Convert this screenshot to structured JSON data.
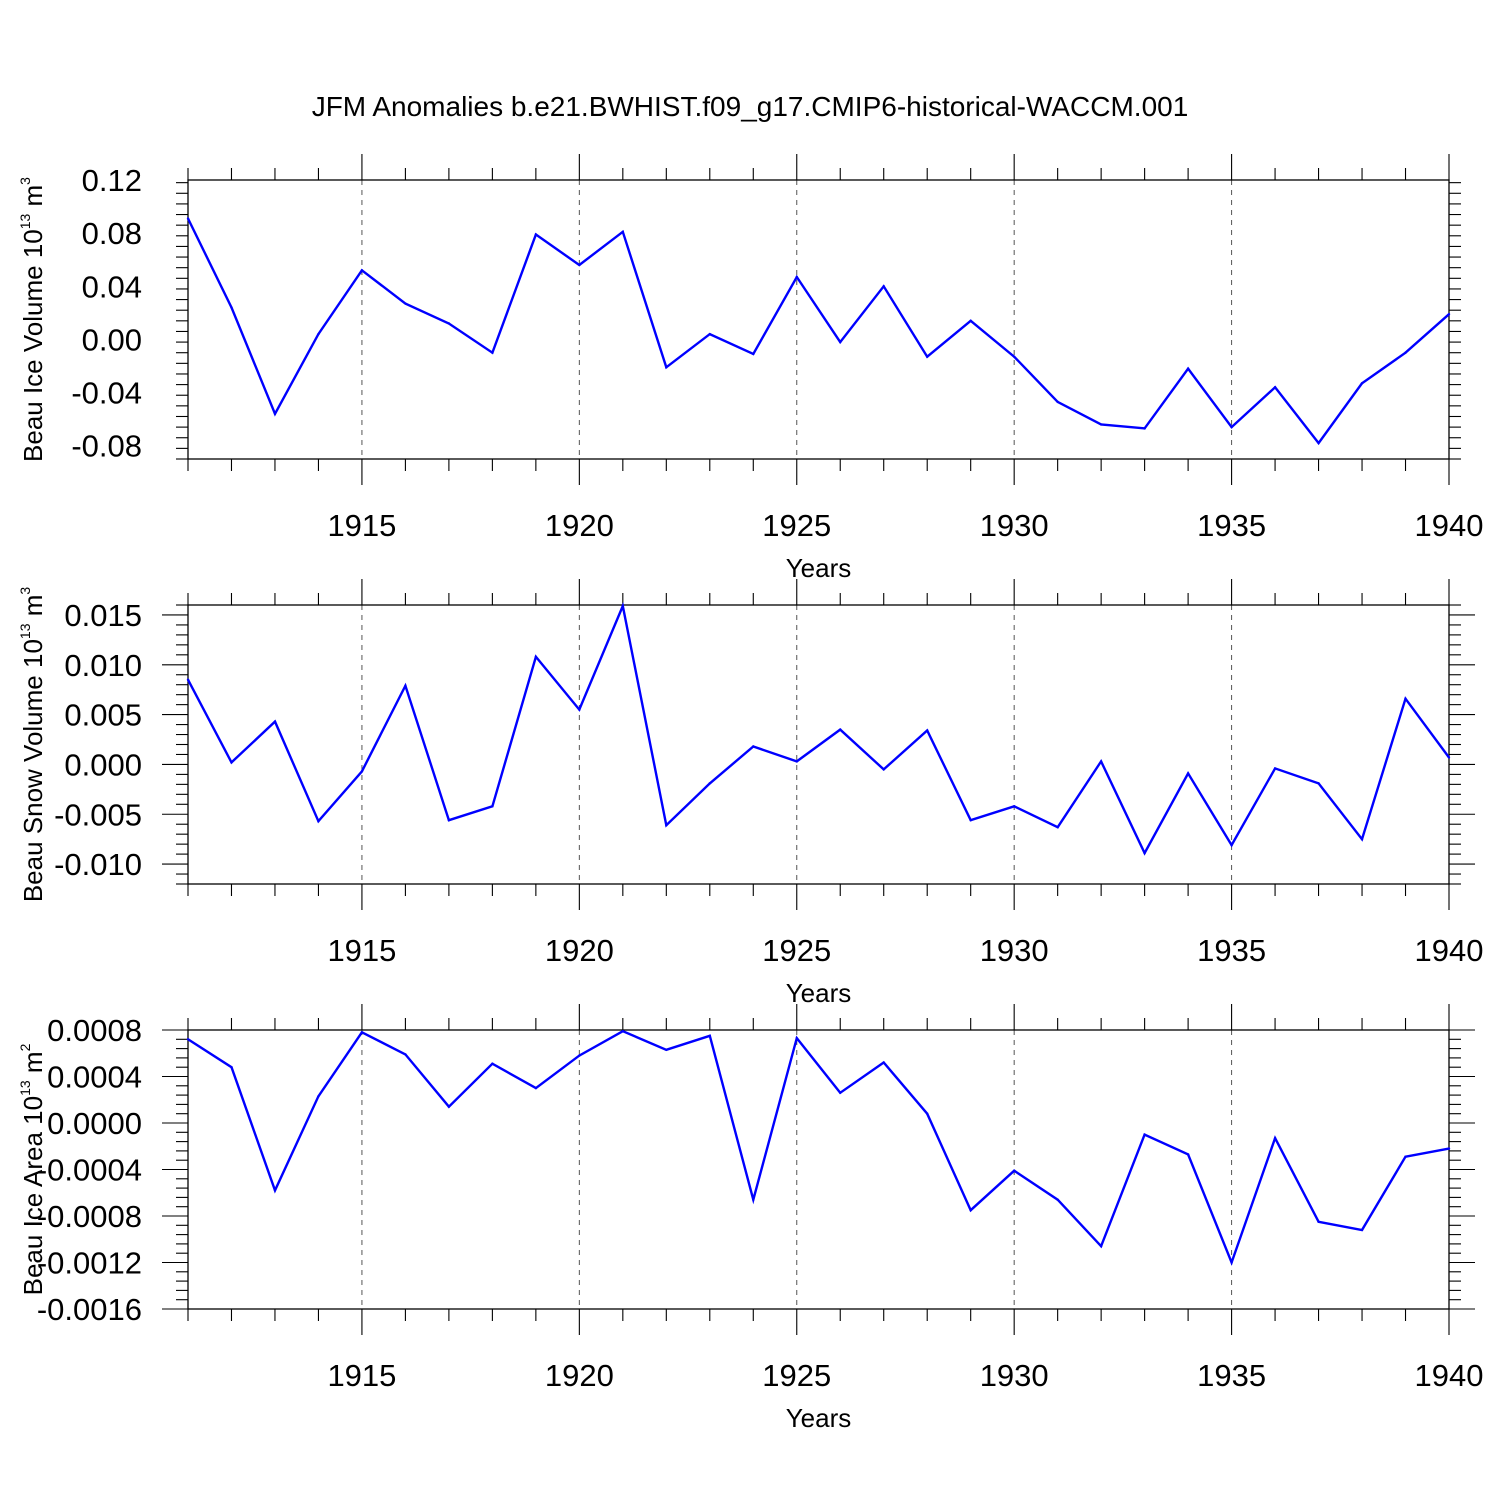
{
  "title": "JFM Anomalies b.e21.BWHIST.f09_g17.CMIP6-historical-WACCM.001",
  "colors": {
    "series": "#0000ff",
    "axes": "#000000",
    "grid": "#555555"
  },
  "chart_data": [
    {
      "type": "line",
      "ylabel": {
        "text": "Beau Ice Volume 10",
        "sup1": "13",
        "unit": " m",
        "sup2": "3"
      },
      "xlabel": "Years",
      "xlim": [
        1911,
        1940
      ],
      "ylim": [
        -0.09,
        0.12
      ],
      "yticks": [
        -0.08,
        -0.04,
        0.0,
        0.04,
        0.08,
        0.12
      ],
      "yticklabels": [
        "-0.08",
        "-0.04",
        "0.00",
        "0.04",
        "0.08",
        "0.12"
      ],
      "ytick_decimals": 2,
      "xticks": [
        1915,
        1920,
        1925,
        1930,
        1935,
        1940
      ],
      "xticklabels": [
        "1915",
        "1920",
        "1925",
        "1930",
        "1935",
        "1940"
      ],
      "grid": "vertical dashed at major x ticks",
      "x": [
        1911,
        1912,
        1913,
        1914,
        1915,
        1916,
        1917,
        1918,
        1919,
        1920,
        1921,
        1922,
        1923,
        1924,
        1925,
        1926,
        1927,
        1928,
        1929,
        1930,
        1931,
        1932,
        1933,
        1934,
        1935,
        1936,
        1937,
        1938,
        1939,
        1940
      ],
      "values": [
        0.091,
        0.024,
        -0.056,
        0.004,
        0.052,
        0.027,
        0.012,
        -0.01,
        0.079,
        0.056,
        0.081,
        -0.021,
        0.004,
        -0.011,
        0.047,
        -0.002,
        0.04,
        -0.013,
        0.014,
        -0.013,
        -0.047,
        -0.064,
        -0.067,
        -0.022,
        -0.066,
        -0.036,
        -0.078,
        -0.033,
        -0.01,
        0.019
      ]
    },
    {
      "type": "line",
      "ylabel": {
        "text": "Beau Snow Volume 10",
        "sup1": "13",
        "unit": " m",
        "sup2": "3"
      },
      "xlabel": "Years",
      "xlim": [
        1911,
        1940
      ],
      "ylim": [
        -0.012,
        0.016
      ],
      "yticks": [
        -0.01,
        -0.005,
        0.0,
        0.005,
        0.01,
        0.015
      ],
      "yticklabels": [
        "-0.010",
        "-0.005",
        "0.000",
        "0.005",
        "0.010",
        "0.015"
      ],
      "ytick_decimals": 3,
      "xticks": [
        1915,
        1920,
        1925,
        1930,
        1935,
        1940
      ],
      "xticklabels": [
        "1915",
        "1920",
        "1925",
        "1930",
        "1935",
        "1940"
      ],
      "grid": "vertical dashed at major x ticks",
      "x": [
        1911,
        1912,
        1913,
        1914,
        1915,
        1916,
        1917,
        1918,
        1919,
        1920,
        1921,
        1922,
        1923,
        1924,
        1925,
        1926,
        1927,
        1928,
        1929,
        1930,
        1931,
        1932,
        1933,
        1934,
        1935,
        1936,
        1937,
        1938,
        1939,
        1940
      ],
      "values": [
        0.0085,
        0.0002,
        0.0043,
        -0.0057,
        -0.0007,
        0.0079,
        -0.0056,
        -0.0042,
        0.0108,
        0.0055,
        0.0159,
        -0.0061,
        -0.0019,
        0.0018,
        0.0003,
        0.0035,
        -0.0005,
        0.0034,
        -0.0056,
        -0.0042,
        -0.0063,
        0.0003,
        -0.0089,
        -0.0009,
        -0.0081,
        -0.0004,
        -0.0019,
        -0.0075,
        0.0066,
        0.0007
      ]
    },
    {
      "type": "line",
      "ylabel": {
        "text": "Beau Ice Area 10",
        "sup1": "13",
        "unit": " m",
        "sup2": "2"
      },
      "xlabel": "Years",
      "xlim": [
        1911,
        1940
      ],
      "ylim": [
        -0.0016,
        0.0008
      ],
      "yticks": [
        -0.0016,
        -0.0012,
        -0.0008,
        -0.0004,
        0.0,
        0.0004,
        0.0008
      ],
      "yticklabels": [
        "-0.0016",
        "-0.0012",
        "-0.0008",
        "-0.0004",
        "0.0000",
        "0.0004",
        "0.0008"
      ],
      "ytick_decimals": 4,
      "xticks": [
        1915,
        1920,
        1925,
        1930,
        1935,
        1940
      ],
      "xticklabels": [
        "1915",
        "1920",
        "1925",
        "1930",
        "1935",
        "1940"
      ],
      "grid": "vertical dashed at major x ticks",
      "x": [
        1911,
        1912,
        1913,
        1914,
        1915,
        1916,
        1917,
        1918,
        1919,
        1920,
        1921,
        1922,
        1923,
        1924,
        1925,
        1926,
        1927,
        1928,
        1929,
        1930,
        1931,
        1932,
        1933,
        1934,
        1935,
        1936,
        1937,
        1938,
        1939,
        1940
      ],
      "values": [
        0.00072,
        0.00048,
        -0.00058,
        0.00023,
        0.00078,
        0.00059,
        0.00014,
        0.00051,
        0.0003,
        0.00058,
        0.00079,
        0.00063,
        0.00075,
        -0.00066,
        0.00073,
        0.00026,
        0.00052,
        8e-05,
        -0.00075,
        -0.00041,
        -0.00066,
        -0.00106,
        -0.0001,
        -0.00027,
        -0.0012,
        -0.00013,
        -0.00085,
        -0.00092,
        -0.00029,
        -0.00022
      ]
    }
  ]
}
